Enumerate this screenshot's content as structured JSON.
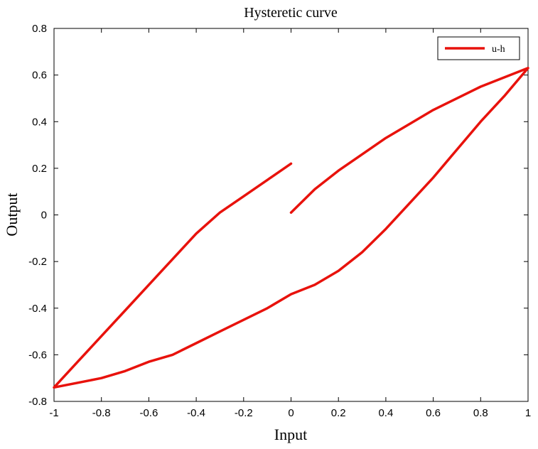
{
  "chart_data": {
    "type": "line",
    "title": "Hysteretic curve",
    "xlabel": "Input",
    "ylabel": "Output",
    "xlim": [
      -1,
      1
    ],
    "ylim": [
      -0.8,
      0.8
    ],
    "xticks": [
      -1,
      -0.8,
      -0.6,
      -0.4,
      -0.2,
      0,
      0.2,
      0.4,
      0.6,
      0.8,
      1
    ],
    "yticks": [
      -0.8,
      -0.6,
      -0.4,
      -0.2,
      0,
      0.2,
      0.4,
      0.6,
      0.8
    ],
    "xtick_labels": [
      "-1",
      "-0.8",
      "-0.6",
      "-0.4",
      "-0.2",
      "0",
      "0.2",
      "0.4",
      "0.6",
      "0.8",
      "1"
    ],
    "ytick_labels": [
      "-0.8",
      "-0.6",
      "-0.4",
      "-0.2",
      "0",
      "0.2",
      "0.4",
      "0.6",
      "0.8"
    ],
    "grid": false,
    "legend_position": "top-right",
    "series": [
      {
        "name": "u-h",
        "color": "#e8120c",
        "x": [
          0,
          0.1,
          0.2,
          0.3,
          0.4,
          0.5,
          0.6,
          0.7,
          0.8,
          0.9,
          1,
          0.9,
          0.8,
          0.7,
          0.6,
          0.5,
          0.4,
          0.3,
          0.2,
          0.1,
          0,
          -0.1,
          -0.2,
          -0.3,
          -0.4,
          -0.5,
          -0.6,
          -0.7,
          -0.8,
          -0.9,
          -1,
          -0.9,
          -0.8,
          -0.7,
          -0.6,
          -0.5,
          -0.4,
          -0.3,
          -0.2,
          -0.1,
          0
        ],
        "y": [
          0.01,
          0.11,
          0.19,
          0.26,
          0.33,
          0.39,
          0.45,
          0.5,
          0.55,
          0.59,
          0.63,
          0.51,
          0.4,
          0.28,
          0.16,
          0.05,
          -0.06,
          -0.16,
          -0.24,
          -0.3,
          -0.34,
          -0.4,
          -0.45,
          -0.5,
          -0.55,
          -0.6,
          -0.63,
          -0.67,
          -0.7,
          -0.72,
          -0.74,
          -0.63,
          -0.52,
          -0.41,
          -0.3,
          -0.19,
          -0.08,
          0.01,
          0.08,
          0.15,
          0.22
        ]
      }
    ]
  }
}
